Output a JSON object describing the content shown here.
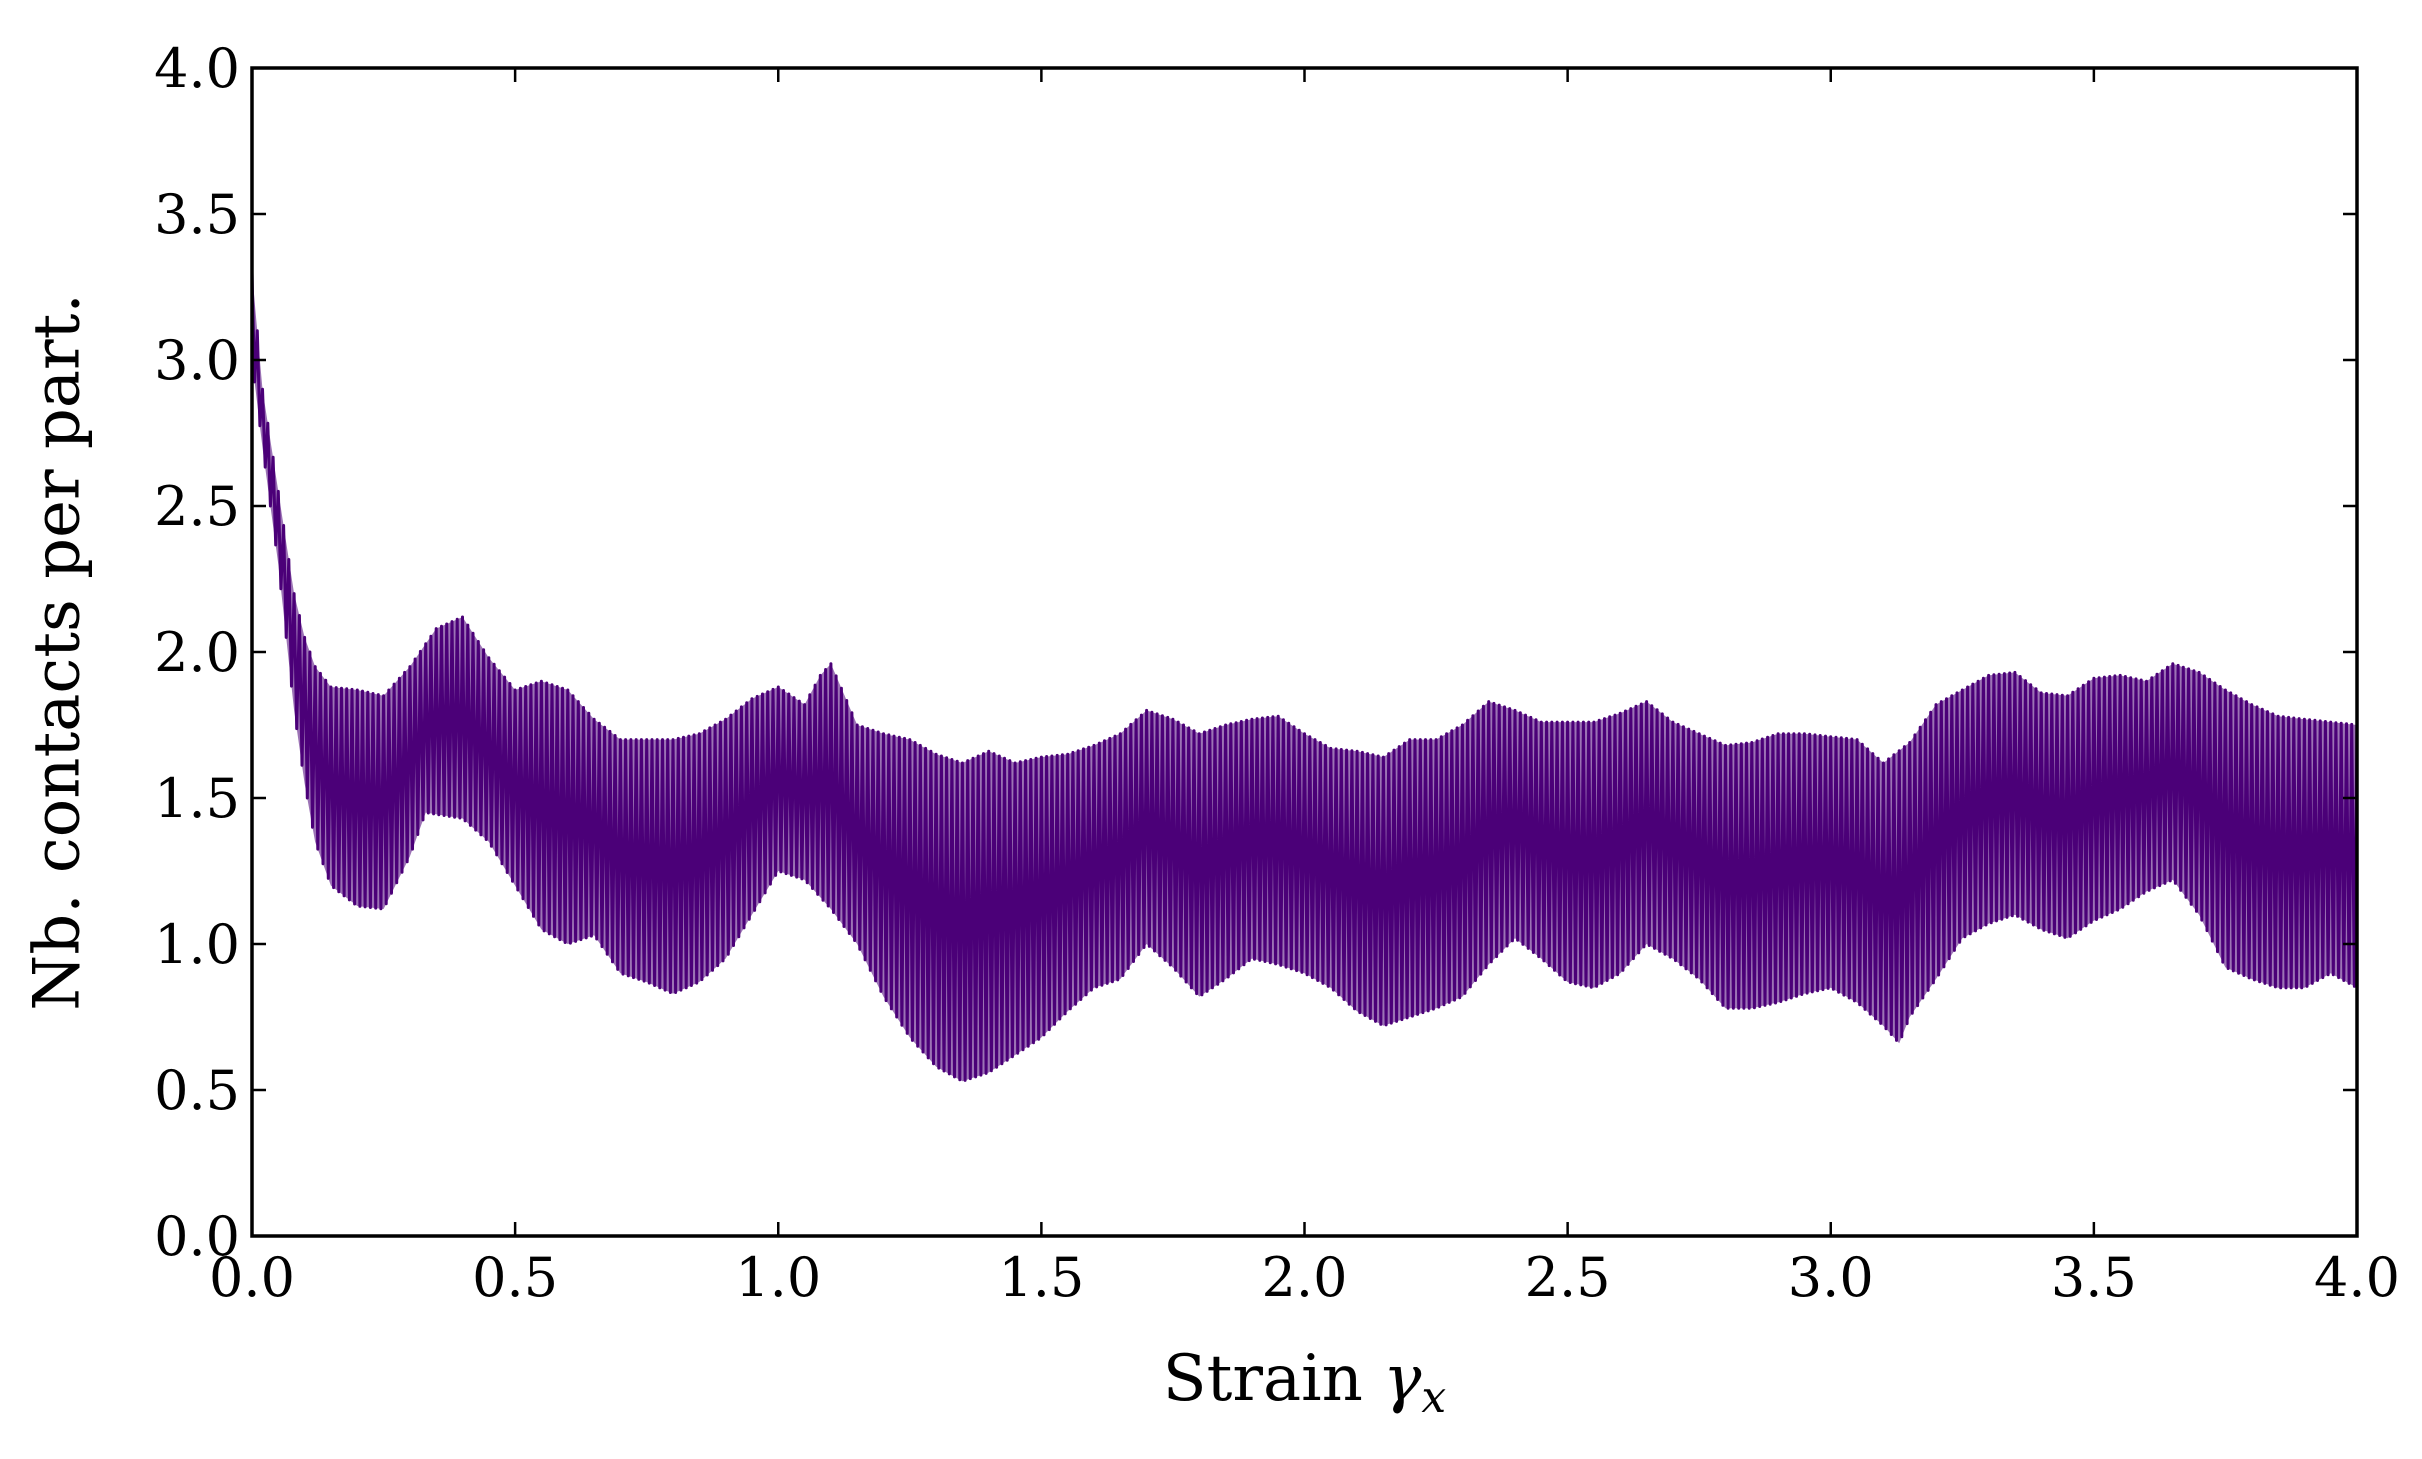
{
  "chart_data": {
    "type": "line",
    "xlabel": "Strain γx",
    "xlabel_main": "Strain ",
    "xlabel_symbol": "γ",
    "xlabel_subscript": "x",
    "ylabel": "Nb. contacts per part.",
    "xlim": [
      0.0,
      4.0
    ],
    "ylim": [
      0.0,
      4.0
    ],
    "xticks": [
      "0.0",
      "0.5",
      "1.0",
      "1.5",
      "2.0",
      "2.5",
      "3.0",
      "3.5",
      "4.0"
    ],
    "yticks": [
      "0.0",
      "0.5",
      "1.0",
      "1.5",
      "2.0",
      "2.5",
      "3.0",
      "3.5",
      "4.0"
    ],
    "line_color": "#4b0078",
    "grid": false,
    "legend": "none",
    "oscillation_period": 0.01,
    "series": [
      {
        "envelope_upper": [
          [
            0.0,
            3.3
          ],
          [
            0.02,
            2.9
          ],
          [
            0.05,
            2.55
          ],
          [
            0.08,
            2.2
          ],
          [
            0.1,
            2.05
          ],
          [
            0.12,
            1.95
          ],
          [
            0.15,
            1.88
          ],
          [
            0.2,
            1.87
          ],
          [
            0.25,
            1.85
          ],
          [
            0.3,
            1.95
          ],
          [
            0.35,
            2.08
          ],
          [
            0.4,
            2.12
          ],
          [
            0.45,
            1.98
          ],
          [
            0.5,
            1.87
          ],
          [
            0.55,
            1.9
          ],
          [
            0.6,
            1.87
          ],
          [
            0.65,
            1.77
          ],
          [
            0.7,
            1.7
          ],
          [
            0.75,
            1.7
          ],
          [
            0.8,
            1.7
          ],
          [
            0.85,
            1.72
          ],
          [
            0.9,
            1.77
          ],
          [
            0.95,
            1.84
          ],
          [
            1.0,
            1.88
          ],
          [
            1.05,
            1.82
          ],
          [
            1.08,
            1.92
          ],
          [
            1.1,
            1.96
          ],
          [
            1.15,
            1.75
          ],
          [
            1.2,
            1.72
          ],
          [
            1.25,
            1.7
          ],
          [
            1.3,
            1.65
          ],
          [
            1.35,
            1.62
          ],
          [
            1.4,
            1.66
          ],
          [
            1.45,
            1.62
          ],
          [
            1.5,
            1.64
          ],
          [
            1.55,
            1.65
          ],
          [
            1.6,
            1.68
          ],
          [
            1.65,
            1.72
          ],
          [
            1.7,
            1.8
          ],
          [
            1.75,
            1.77
          ],
          [
            1.8,
            1.72
          ],
          [
            1.85,
            1.75
          ],
          [
            1.9,
            1.77
          ],
          [
            1.95,
            1.78
          ],
          [
            2.0,
            1.72
          ],
          [
            2.05,
            1.67
          ],
          [
            2.1,
            1.66
          ],
          [
            2.15,
            1.64
          ],
          [
            2.2,
            1.7
          ],
          [
            2.25,
            1.7
          ],
          [
            2.3,
            1.75
          ],
          [
            2.35,
            1.83
          ],
          [
            2.4,
            1.8
          ],
          [
            2.45,
            1.76
          ],
          [
            2.5,
            1.76
          ],
          [
            2.55,
            1.76
          ],
          [
            2.6,
            1.79
          ],
          [
            2.65,
            1.83
          ],
          [
            2.7,
            1.76
          ],
          [
            2.75,
            1.72
          ],
          [
            2.8,
            1.68
          ],
          [
            2.85,
            1.69
          ],
          [
            2.9,
            1.72
          ],
          [
            2.95,
            1.72
          ],
          [
            3.0,
            1.71
          ],
          [
            3.05,
            1.7
          ],
          [
            3.1,
            1.62
          ],
          [
            3.15,
            1.69
          ],
          [
            3.2,
            1.82
          ],
          [
            3.25,
            1.87
          ],
          [
            3.3,
            1.92
          ],
          [
            3.35,
            1.93
          ],
          [
            3.4,
            1.86
          ],
          [
            3.45,
            1.85
          ],
          [
            3.5,
            1.91
          ],
          [
            3.55,
            1.92
          ],
          [
            3.6,
            1.9
          ],
          [
            3.65,
            1.96
          ],
          [
            3.7,
            1.93
          ],
          [
            3.75,
            1.87
          ],
          [
            3.8,
            1.82
          ],
          [
            3.85,
            1.78
          ],
          [
            3.9,
            1.77
          ],
          [
            3.95,
            1.76
          ],
          [
            4.0,
            1.75
          ]
        ],
        "envelope_lower": [
          [
            0.0,
            3.0
          ],
          [
            0.02,
            2.7
          ],
          [
            0.05,
            2.3
          ],
          [
            0.08,
            1.8
          ],
          [
            0.1,
            1.55
          ],
          [
            0.12,
            1.35
          ],
          [
            0.15,
            1.2
          ],
          [
            0.2,
            1.13
          ],
          [
            0.25,
            1.12
          ],
          [
            0.3,
            1.3
          ],
          [
            0.33,
            1.45
          ],
          [
            0.4,
            1.43
          ],
          [
            0.45,
            1.35
          ],
          [
            0.5,
            1.2
          ],
          [
            0.55,
            1.05
          ],
          [
            0.6,
            1.0
          ],
          [
            0.65,
            1.03
          ],
          [
            0.7,
            0.9
          ],
          [
            0.75,
            0.87
          ],
          [
            0.8,
            0.83
          ],
          [
            0.85,
            0.87
          ],
          [
            0.9,
            0.95
          ],
          [
            0.95,
            1.1
          ],
          [
            1.0,
            1.25
          ],
          [
            1.05,
            1.22
          ],
          [
            1.1,
            1.12
          ],
          [
            1.15,
            1.0
          ],
          [
            1.2,
            0.82
          ],
          [
            1.25,
            0.68
          ],
          [
            1.3,
            0.58
          ],
          [
            1.35,
            0.53
          ],
          [
            1.4,
            0.56
          ],
          [
            1.45,
            0.62
          ],
          [
            1.5,
            0.68
          ],
          [
            1.55,
            0.77
          ],
          [
            1.6,
            0.85
          ],
          [
            1.65,
            0.88
          ],
          [
            1.7,
            1.0
          ],
          [
            1.75,
            0.92
          ],
          [
            1.8,
            0.82
          ],
          [
            1.85,
            0.88
          ],
          [
            1.9,
            0.95
          ],
          [
            1.95,
            0.93
          ],
          [
            2.0,
            0.9
          ],
          [
            2.05,
            0.85
          ],
          [
            2.1,
            0.77
          ],
          [
            2.15,
            0.72
          ],
          [
            2.2,
            0.75
          ],
          [
            2.25,
            0.78
          ],
          [
            2.3,
            0.82
          ],
          [
            2.35,
            0.93
          ],
          [
            2.4,
            1.02
          ],
          [
            2.45,
            0.95
          ],
          [
            2.5,
            0.87
          ],
          [
            2.55,
            0.85
          ],
          [
            2.6,
            0.9
          ],
          [
            2.65,
            1.0
          ],
          [
            2.7,
            0.95
          ],
          [
            2.75,
            0.88
          ],
          [
            2.8,
            0.78
          ],
          [
            2.85,
            0.78
          ],
          [
            2.9,
            0.8
          ],
          [
            2.95,
            0.83
          ],
          [
            3.0,
            0.85
          ],
          [
            3.05,
            0.8
          ],
          [
            3.1,
            0.72
          ],
          [
            3.13,
            0.66
          ],
          [
            3.15,
            0.75
          ],
          [
            3.2,
            0.88
          ],
          [
            3.25,
            1.02
          ],
          [
            3.3,
            1.07
          ],
          [
            3.35,
            1.1
          ],
          [
            3.4,
            1.05
          ],
          [
            3.45,
            1.02
          ],
          [
            3.5,
            1.08
          ],
          [
            3.55,
            1.12
          ],
          [
            3.6,
            1.18
          ],
          [
            3.65,
            1.22
          ],
          [
            3.7,
            1.1
          ],
          [
            3.75,
            0.92
          ],
          [
            3.8,
            0.88
          ],
          [
            3.85,
            0.85
          ],
          [
            3.9,
            0.85
          ],
          [
            3.95,
            0.9
          ],
          [
            4.0,
            0.85
          ]
        ]
      }
    ]
  }
}
